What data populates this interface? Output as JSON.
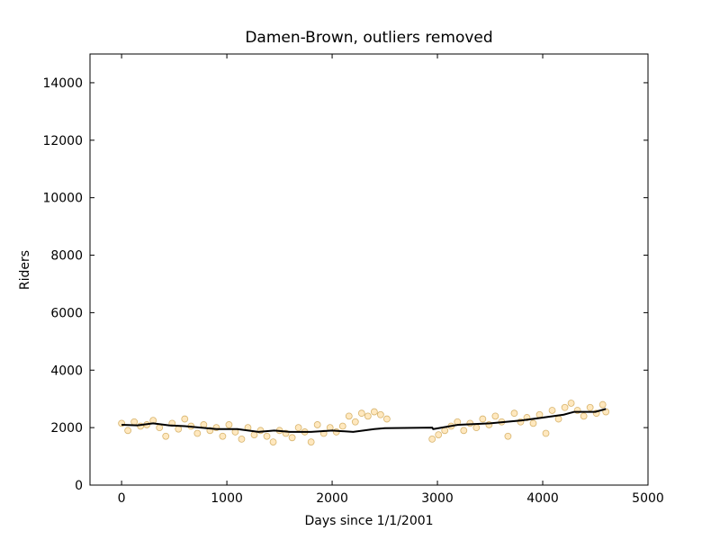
{
  "chart_data": {
    "type": "scatter",
    "title": "Damen-Brown, outliers removed",
    "xlabel": "Days since 1/1/2001",
    "ylabel": "Riders",
    "xlim": [
      -300,
      5000
    ],
    "xticks": [
      0,
      1000,
      2000,
      3000,
      4000,
      5000
    ],
    "ylim": [
      0,
      15000
    ],
    "yticks": [
      0,
      2000,
      4000,
      6000,
      8000,
      10000,
      12000,
      14000
    ],
    "points": {
      "color": "#ffa500",
      "edgecolor": "#b07800",
      "x": [
        0,
        60,
        120,
        180,
        240,
        300,
        360,
        420,
        480,
        540,
        600,
        660,
        720,
        780,
        840,
        900,
        960,
        1020,
        1080,
        1140,
        1200,
        1260,
        1320,
        1380,
        1440,
        1500,
        1560,
        1620,
        1680,
        1740,
        1800,
        1860,
        1920,
        1980,
        2040,
        2100,
        2160,
        2220,
        2280,
        2340,
        2400,
        2460,
        2520,
        2950,
        3010,
        3070,
        3130,
        3190,
        3250,
        3310,
        3370,
        3430,
        3490,
        3550,
        3610,
        3670,
        3730,
        3790,
        3850,
        3910,
        3970,
        4030,
        4090,
        4150,
        4210,
        4270,
        4330,
        4390,
        4450,
        4510,
        4570,
        4600
      ],
      "y": [
        2150,
        1900,
        2200,
        2050,
        2100,
        2250,
        2000,
        1700,
        2150,
        1950,
        2300,
        2050,
        1800,
        2100,
        1900,
        2000,
        1700,
        2100,
        1850,
        1600,
        2000,
        1750,
        1900,
        1700,
        1500,
        1900,
        1800,
        1650,
        2000,
        1850,
        1500,
        2100,
        1800,
        2000,
        1850,
        2050,
        2400,
        2200,
        2500,
        2400,
        2550,
        2450,
        2300,
        1600,
        1750,
        1900,
        2050,
        2200,
        1900,
        2150,
        2000,
        2300,
        2100,
        2400,
        2200,
        1700,
        2500,
        2200,
        2350,
        2150,
        2450,
        1800,
        2600,
        2300,
        2700,
        2850,
        2600,
        2400,
        2700,
        2500,
        2800,
        2550
      ]
    },
    "trend": {
      "color": "#000000",
      "x": [
        0,
        150,
        300,
        450,
        600,
        750,
        900,
        1100,
        1300,
        1450,
        1600,
        1800,
        2000,
        2200,
        2400,
        2500,
        2950,
        2960,
        3200,
        3500,
        3800,
        4000,
        4200,
        4300,
        4500,
        4600
      ],
      "y": [
        2100,
        2080,
        2150,
        2080,
        2050,
        2000,
        1950,
        1950,
        1850,
        1900,
        1850,
        1850,
        1900,
        1850,
        1950,
        1980,
        2000,
        1950,
        2100,
        2150,
        2250,
        2350,
        2450,
        2550,
        2550,
        2650
      ]
    }
  }
}
